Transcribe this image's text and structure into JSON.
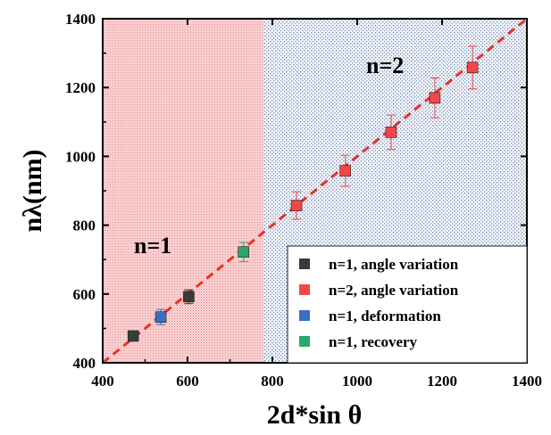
{
  "chart_data": {
    "type": "scatter",
    "xlabel": "2d*sin θ",
    "ylabel": "nλ(nm)",
    "xlim": [
      400,
      1400
    ],
    "ylim": [
      400,
      1400
    ],
    "x_ticks": [
      400,
      600,
      800,
      1000,
      1200,
      1400
    ],
    "y_ticks": [
      400,
      600,
      800,
      1000,
      1200,
      1400
    ],
    "regions": [
      {
        "label": "n=1",
        "x_range": [
          400,
          780
        ],
        "color": "#f4a6a6",
        "pattern": "cross-hatch"
      },
      {
        "label": "n=2",
        "x_range": [
          780,
          1400
        ],
        "color": "#8fa4c8",
        "pattern": "dots"
      }
    ],
    "fit_line": {
      "from": [
        400,
        400
      ],
      "to": [
        1400,
        1400
      ],
      "color": "#e8302c",
      "style": "dashed"
    },
    "series": [
      {
        "name": "n=1, angle variation",
        "color": "#3a3a3a",
        "x": [
          472,
          603
        ],
        "y": [
          478,
          592
        ],
        "err": [
          15,
          20
        ]
      },
      {
        "name": "n=2, angle variation",
        "color": "#f0474a",
        "x": [
          857,
          972,
          1080,
          1183,
          1272
        ],
        "y": [
          857,
          958,
          1070,
          1170,
          1258
        ],
        "err": [
          40,
          45,
          50,
          58,
          62
        ]
      },
      {
        "name": "n=1, deformation",
        "color": "#3a6fc4",
        "x": [
          537
        ],
        "y": [
          533
        ],
        "err": [
          22
        ]
      },
      {
        "name": "n=1, recovery",
        "color": "#2aa86a",
        "x": [
          732
        ],
        "y": [
          722
        ],
        "err": [
          28
        ]
      }
    ],
    "legend_position": "bottom-right"
  }
}
